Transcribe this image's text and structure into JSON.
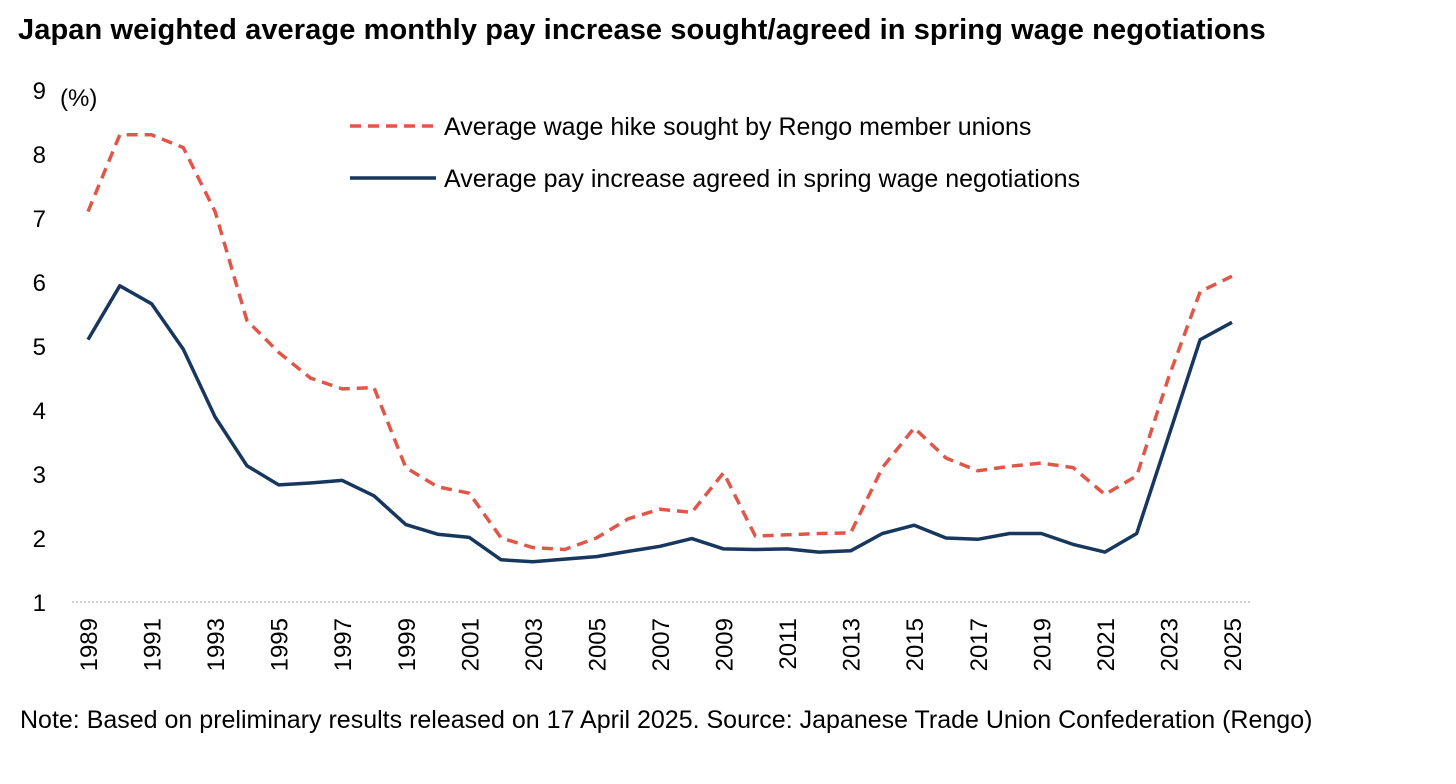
{
  "title": "Japan weighted average monthly pay increase sought/agreed in spring wage negotiations",
  "note": "Note: Based on preliminary results released on 17 April 2025. Source: Japanese Trade Union Confederation (Rengo)",
  "chart_data": {
    "type": "line",
    "title": "Japan weighted average monthly pay increase sought/agreed in spring wage negotiations",
    "ylabel": "(%)",
    "ylim": [
      1,
      9
    ],
    "yticks": [
      "1",
      "2",
      "3",
      "4",
      "5",
      "6",
      "7",
      "8",
      "9"
    ],
    "xticks": [
      "1989",
      "1991",
      "1993",
      "1995",
      "1997",
      "1999",
      "2001",
      "2003",
      "2005",
      "2007",
      "2009",
      "2011",
      "2013",
      "2015",
      "2017",
      "2019",
      "2021",
      "2023",
      "2025"
    ],
    "x": [
      1989,
      1990,
      1991,
      1992,
      1993,
      1994,
      1995,
      1996,
      1997,
      1998,
      1999,
      2000,
      2001,
      2002,
      2003,
      2004,
      2005,
      2006,
      2007,
      2008,
      2009,
      2010,
      2011,
      2012,
      2013,
      2014,
      2015,
      2016,
      2017,
      2018,
      2019,
      2020,
      2021,
      2022,
      2023,
      2024,
      2025
    ],
    "legend_position": "top-center",
    "grid": false,
    "series": [
      {
        "name": "Average wage hike sought by Rengo member unions",
        "color": "#e0574a",
        "style": "dashed",
        "values": [
          7.1,
          8.3,
          8.3,
          8.1,
          7.1,
          5.4,
          4.9,
          4.5,
          4.33,
          4.35,
          3.1,
          2.8,
          2.7,
          2.0,
          1.85,
          1.82,
          2.0,
          2.3,
          2.45,
          2.4,
          3.02,
          2.03,
          2.05,
          2.07,
          2.08,
          3.1,
          3.72,
          3.25,
          3.05,
          3.12,
          3.17,
          3.1,
          2.68,
          2.97,
          4.5,
          5.85,
          6.09
        ]
      },
      {
        "name": "Average pay increase agreed in spring wage negotiations",
        "color": "#17375e",
        "style": "solid",
        "values": [
          5.1,
          5.94,
          5.66,
          4.95,
          3.89,
          3.13,
          2.83,
          2.86,
          2.9,
          2.66,
          2.21,
          2.06,
          2.01,
          1.66,
          1.63,
          1.67,
          1.71,
          1.79,
          1.87,
          1.99,
          1.83,
          1.82,
          1.83,
          1.78,
          1.8,
          2.07,
          2.2,
          2.0,
          1.98,
          2.07,
          2.07,
          1.9,
          1.78,
          2.07,
          3.58,
          5.1,
          5.37
        ]
      }
    ]
  }
}
